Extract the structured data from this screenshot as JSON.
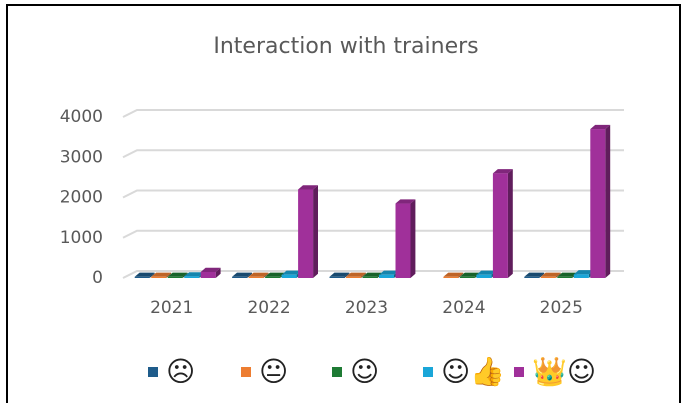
{
  "chart_data": {
    "type": "bar3d",
    "title": "Interaction with trainers",
    "categories": [
      "2021",
      "2022",
      "2023",
      "2024",
      "2025"
    ],
    "series": [
      {
        "name": "☹",
        "color": "#1f5c8b",
        "values": [
          30,
          30,
          30,
          null,
          30
        ]
      },
      {
        "name": "😐",
        "color": "#ed7d31",
        "values": [
          30,
          30,
          30,
          30,
          30
        ]
      },
      {
        "name": "☺",
        "color": "#1e7b34",
        "values": [
          30,
          30,
          30,
          30,
          30
        ]
      },
      {
        "name": "☺👍",
        "color": "#1aa6d8",
        "values": [
          40,
          80,
          80,
          80,
          90
        ]
      },
      {
        "name": "👑☺",
        "color": "#a0309a",
        "values": [
          150,
          2200,
          1850,
          2600,
          3700
        ]
      }
    ],
    "ylim": [
      0,
      4000
    ],
    "yticks": [
      0,
      1000,
      2000,
      3000,
      4000
    ],
    "grid": true,
    "legend": "bottom"
  }
}
